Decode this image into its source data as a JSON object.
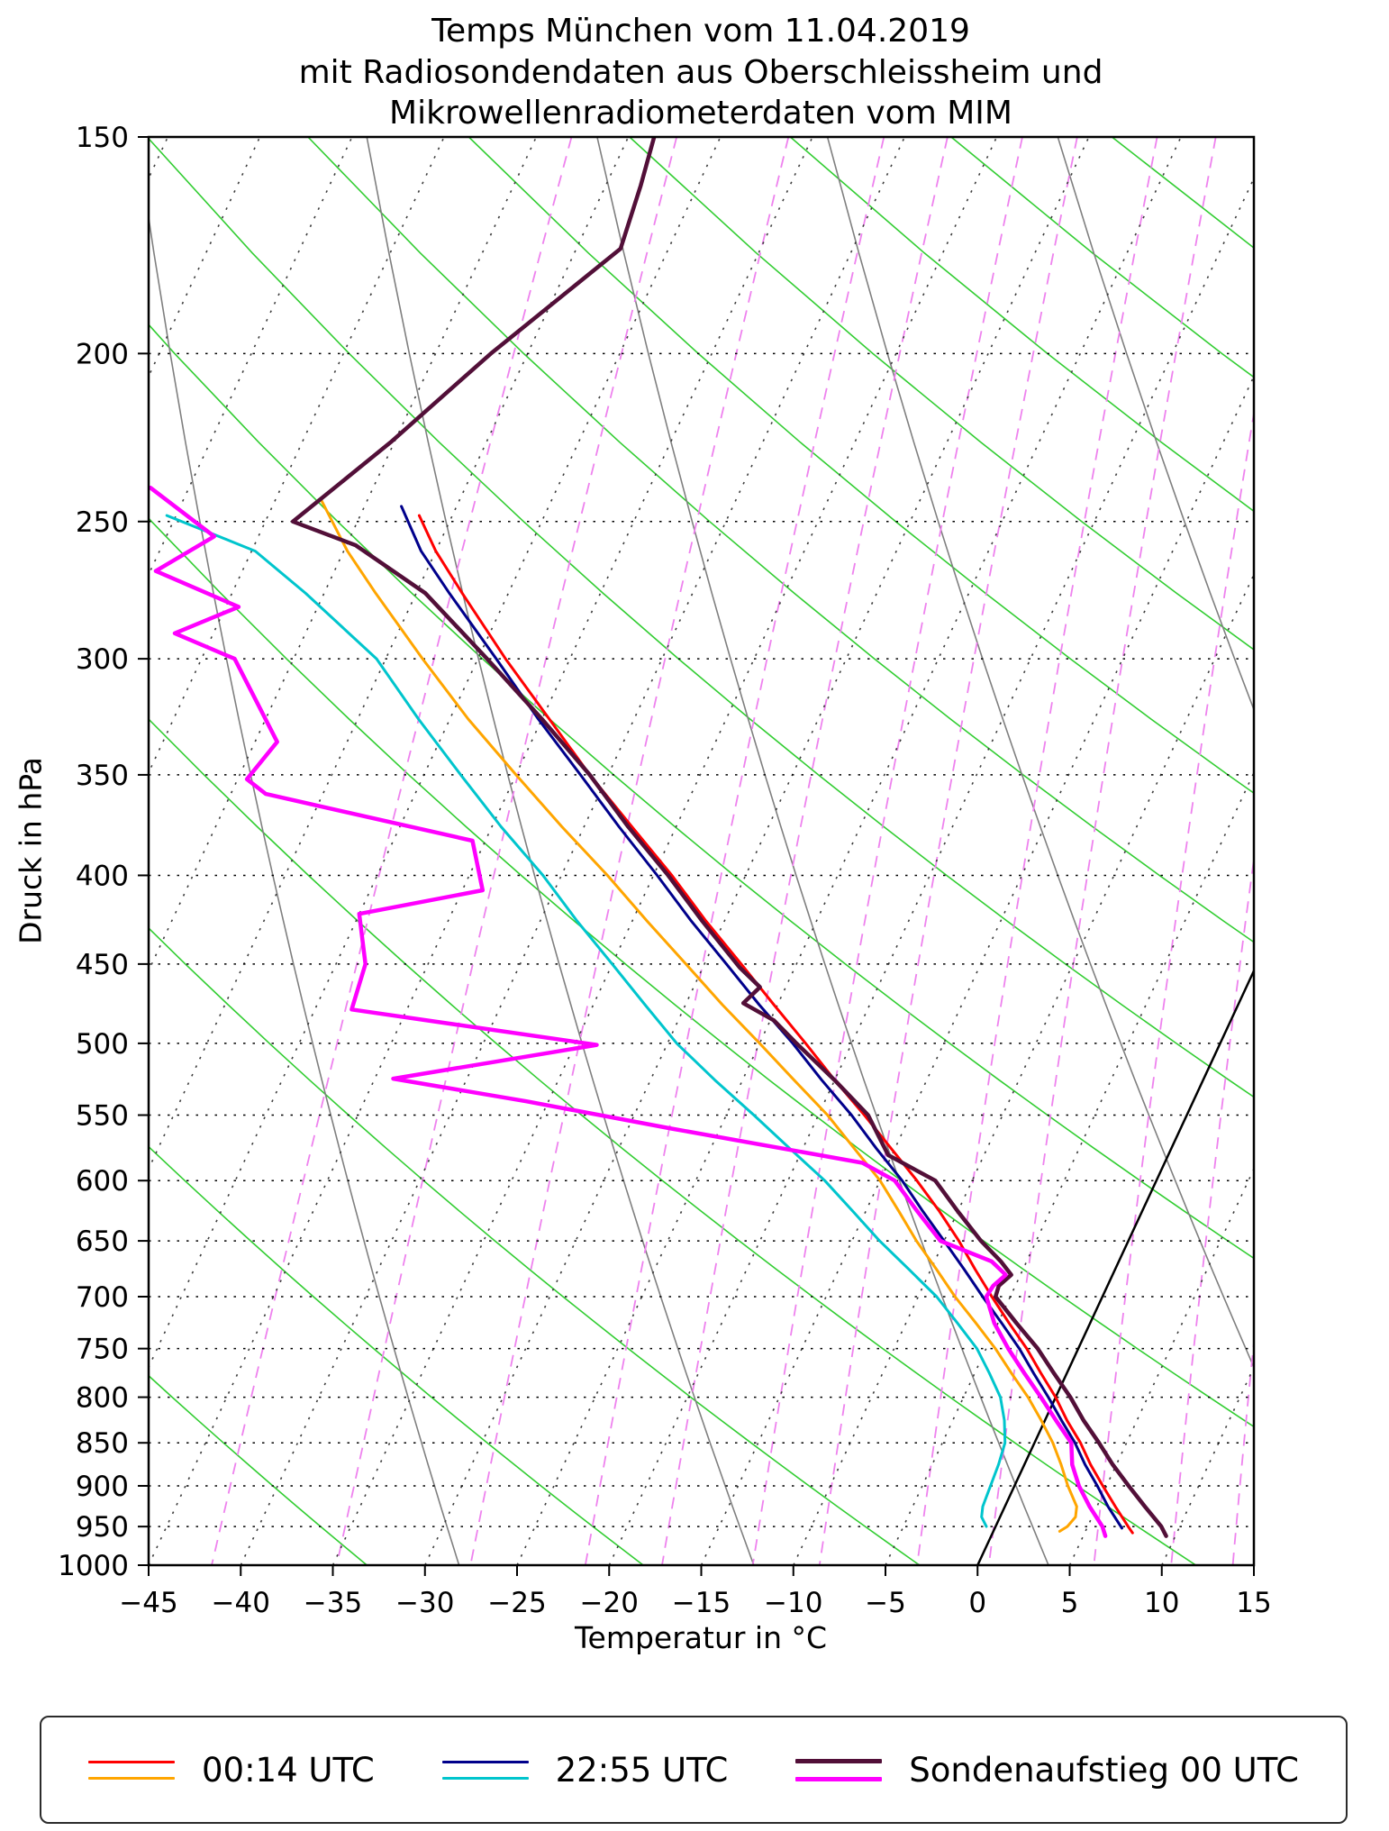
{
  "title": {
    "line1": "Temps München vom 11.04.2019",
    "line2": "mit Radiosondendaten aus Oberschleissheim und",
    "line3": "Mikrowellenradiometerdaten vom MIM"
  },
  "axes": {
    "xlabel": "Temperatur in °C",
    "ylabel": "Druck in hPa",
    "xlim": [
      -45,
      15
    ],
    "ylim": [
      1000,
      150
    ],
    "x_ticks": [
      -45,
      -40,
      -35,
      -30,
      -25,
      -20,
      -15,
      -10,
      -5,
      0,
      5,
      10,
      15
    ],
    "y_ticks": [
      150,
      200,
      250,
      300,
      350,
      400,
      450,
      500,
      550,
      600,
      650,
      700,
      750,
      800,
      850,
      900,
      950,
      1000
    ]
  },
  "legend": {
    "items": [
      {
        "label": "00:14 UTC"
      },
      {
        "label": "22:55 UTC"
      },
      {
        "label": "Sondenaufstieg 00 UTC"
      }
    ]
  },
  "chart_data": {
    "type": "line",
    "diagram": "skew-t-log-p",
    "title": "Temps München vom 11.04.2019 mit Radiosondendaten aus Oberschleissheim und Mikrowellenradiometerdaten vom MIM",
    "xlabel": "Temperatur in °C",
    "ylabel": "Druck in hPa",
    "x_range_c": [
      -45,
      15
    ],
    "y_range_hpa": [
      1000,
      150
    ],
    "y_scale": "log",
    "skew": 0.465,
    "background": {
      "isotherm_step_c": 5,
      "isotherm_color": "#3d3d3d",
      "zero_isotherm_color": "#000000",
      "pressure_grid_color": "#000000",
      "dry_adiabat_color": "#32cd32",
      "dry_adiabats_theta_k": [
        240,
        255,
        270,
        285,
        300,
        315,
        330,
        345,
        360,
        375,
        390,
        405,
        420,
        435
      ],
      "moist_adiabat_color": "#7f7f7f",
      "moist_adiabats_thetaw_k": [
        245,
        261,
        277,
        293,
        309,
        325,
        341
      ],
      "mixing_ratio_color": "#ee82ee",
      "mixing_ratio_g_kg": [
        0.1,
        0.2,
        0.4,
        0.7,
        1,
        1.5,
        2,
        3,
        4,
        6,
        8,
        10,
        14,
        20
      ]
    },
    "series": [
      {
        "id": "temperature-0014utc",
        "legend": "00:14 UTC",
        "kind": "temperature",
        "color": "#ff0000",
        "width": 3,
        "points": [
          [
            958,
            7.6
          ],
          [
            950,
            7.2
          ],
          [
            925,
            6.0
          ],
          [
            900,
            4.8
          ],
          [
            875,
            3.6
          ],
          [
            850,
            2.5
          ],
          [
            825,
            1.2
          ],
          [
            800,
            0.0
          ],
          [
            775,
            -1.4
          ],
          [
            750,
            -2.8
          ],
          [
            725,
            -4.4
          ],
          [
            700,
            -6.0
          ],
          [
            675,
            -7.6
          ],
          [
            650,
            -9.2
          ],
          [
            625,
            -11.0
          ],
          [
            600,
            -13.0
          ],
          [
            575,
            -15.2
          ],
          [
            550,
            -17.5
          ],
          [
            525,
            -20.0
          ],
          [
            500,
            -22.5
          ],
          [
            475,
            -25.2
          ],
          [
            450,
            -28.0
          ],
          [
            425,
            -31.0
          ],
          [
            400,
            -34.0
          ],
          [
            375,
            -37.4
          ],
          [
            350,
            -41.0
          ],
          [
            325,
            -44.6
          ],
          [
            300,
            -48.5
          ],
          [
            275,
            -52.5
          ],
          [
            260,
            -55.0
          ],
          [
            248,
            -56.8
          ]
        ]
      },
      {
        "id": "dewpoint-0014utc",
        "legend": "00:14 UTC",
        "kind": "dewpoint",
        "color": "#ffa500",
        "width": 3,
        "points": [
          [
            956,
            3.6
          ],
          [
            950,
            3.9
          ],
          [
            938,
            4.1
          ],
          [
            925,
            3.9
          ],
          [
            900,
            2.9
          ],
          [
            875,
            2.0
          ],
          [
            850,
            1.0
          ],
          [
            825,
            -0.2
          ],
          [
            800,
            -1.5
          ],
          [
            775,
            -3.0
          ],
          [
            750,
            -4.5
          ],
          [
            725,
            -6.2
          ],
          [
            700,
            -8.0
          ],
          [
            675,
            -9.7
          ],
          [
            650,
            -11.5
          ],
          [
            625,
            -13.2
          ],
          [
            600,
            -15.0
          ],
          [
            575,
            -17.2
          ],
          [
            550,
            -19.5
          ],
          [
            525,
            -22.2
          ],
          [
            500,
            -25.0
          ],
          [
            475,
            -28.0
          ],
          [
            450,
            -31.0
          ],
          [
            425,
            -34.2
          ],
          [
            400,
            -37.5
          ],
          [
            375,
            -41.2
          ],
          [
            350,
            -45.0
          ],
          [
            325,
            -49.0
          ],
          [
            300,
            -53.0
          ],
          [
            275,
            -57.2
          ],
          [
            260,
            -59.8
          ],
          [
            243,
            -62.5
          ]
        ]
      },
      {
        "id": "temperature-2255utc",
        "legend": "22:55 UTC",
        "kind": "temperature",
        "color": "#00008b",
        "width": 3,
        "points": [
          [
            952,
            6.9
          ],
          [
            925,
            5.6
          ],
          [
            900,
            4.5
          ],
          [
            875,
            3.3
          ],
          [
            850,
            2.2
          ],
          [
            825,
            0.9
          ],
          [
            800,
            -0.4
          ],
          [
            775,
            -1.8
          ],
          [
            750,
            -3.2
          ],
          [
            725,
            -4.8
          ],
          [
            700,
            -6.5
          ],
          [
            675,
            -8.2
          ],
          [
            650,
            -10.0
          ],
          [
            625,
            -11.9
          ],
          [
            600,
            -13.8
          ],
          [
            575,
            -16.0
          ],
          [
            550,
            -18.2
          ],
          [
            525,
            -20.7
          ],
          [
            500,
            -23.2
          ],
          [
            475,
            -26.0
          ],
          [
            450,
            -28.8
          ],
          [
            425,
            -31.8
          ],
          [
            400,
            -34.8
          ],
          [
            375,
            -38.1
          ],
          [
            350,
            -41.5
          ],
          [
            325,
            -45.2
          ],
          [
            300,
            -49.0
          ],
          [
            275,
            -53.2
          ],
          [
            260,
            -55.8
          ],
          [
            245,
            -58.0
          ]
        ]
      },
      {
        "id": "dewpoint-2255utc",
        "legend": "22:55 UTC",
        "kind": "dewpoint",
        "color": "#00c5cd",
        "width": 3,
        "points": [
          [
            950,
            -0.5
          ],
          [
            938,
            -1.0
          ],
          [
            925,
            -1.2
          ],
          [
            900,
            -1.3
          ],
          [
            875,
            -1.4
          ],
          [
            850,
            -1.6
          ],
          [
            825,
            -2.2
          ],
          [
            800,
            -3.0
          ],
          [
            775,
            -4.2
          ],
          [
            750,
            -5.5
          ],
          [
            725,
            -7.2
          ],
          [
            700,
            -9.0
          ],
          [
            675,
            -11.2
          ],
          [
            650,
            -13.5
          ],
          [
            625,
            -15.7
          ],
          [
            600,
            -18.0
          ],
          [
            575,
            -20.7
          ],
          [
            550,
            -23.5
          ],
          [
            525,
            -26.5
          ],
          [
            500,
            -29.5
          ],
          [
            475,
            -32.2
          ],
          [
            450,
            -35.0
          ],
          [
            425,
            -38.0
          ],
          [
            400,
            -41.0
          ],
          [
            375,
            -44.5
          ],
          [
            350,
            -48.0
          ],
          [
            325,
            -51.7
          ],
          [
            300,
            -55.5
          ],
          [
            275,
            -61.0
          ],
          [
            260,
            -64.8
          ],
          [
            248,
            -70.5
          ]
        ]
      },
      {
        "id": "temperature-sonde-00utc",
        "legend": "Sondenaufstieg 00 UTC",
        "kind": "temperature",
        "color": "#520f38",
        "width": 4.5,
        "points": [
          [
            962,
            9.5
          ],
          [
            950,
            9.0
          ],
          [
            925,
            7.6
          ],
          [
            900,
            6.2
          ],
          [
            875,
            4.8
          ],
          [
            850,
            3.5
          ],
          [
            825,
            2.1
          ],
          [
            800,
            0.8
          ],
          [
            775,
            -0.7
          ],
          [
            750,
            -2.2
          ],
          [
            725,
            -4.0
          ],
          [
            700,
            -5.8
          ],
          [
            690,
            -5.9
          ],
          [
            680,
            -5.5
          ],
          [
            668,
            -6.4
          ],
          [
            650,
            -8.0
          ],
          [
            625,
            -10.0
          ],
          [
            600,
            -12.0
          ],
          [
            580,
            -15.2
          ],
          [
            550,
            -17.3
          ],
          [
            525,
            -20.0
          ],
          [
            500,
            -23.0
          ],
          [
            485,
            -24.8
          ],
          [
            474,
            -26.9
          ],
          [
            464,
            -26.4
          ],
          [
            452,
            -28.0
          ],
          [
            425,
            -31.2
          ],
          [
            400,
            -34.2
          ],
          [
            375,
            -37.6
          ],
          [
            350,
            -41.0
          ],
          [
            325,
            -45.0
          ],
          [
            300,
            -49.5
          ],
          [
            275,
            -54.5
          ],
          [
            258,
            -59.5
          ],
          [
            250,
            -63.5
          ],
          [
            225,
            -60.2
          ],
          [
            200,
            -57.0
          ],
          [
            174,
            -52.6
          ],
          [
            160,
            -53.1
          ],
          [
            150,
            -53.6
          ]
        ]
      },
      {
        "id": "dewpoint-sonde-00utc",
        "legend": "Sondenaufstieg 00 UTC",
        "kind": "dewpoint",
        "color": "#ff00ff",
        "width": 4.5,
        "points": [
          [
            962,
            6.2
          ],
          [
            950,
            5.8
          ],
          [
            925,
            4.6
          ],
          [
            900,
            3.5
          ],
          [
            875,
            2.6
          ],
          [
            850,
            2.0
          ],
          [
            825,
            0.6
          ],
          [
            800,
            -0.8
          ],
          [
            775,
            -2.3
          ],
          [
            750,
            -3.8
          ],
          [
            725,
            -5.2
          ],
          [
            700,
            -6.3
          ],
          [
            690,
            -6.2
          ],
          [
            680,
            -5.8
          ],
          [
            668,
            -6.9
          ],
          [
            650,
            -10.2
          ],
          [
            625,
            -12.2
          ],
          [
            600,
            -14.2
          ],
          [
            586,
            -16.4
          ],
          [
            560,
            -27.6
          ],
          [
            540,
            -36.2
          ],
          [
            524,
            -44.0
          ],
          [
            501,
            -33.8
          ],
          [
            478,
            -48.0
          ],
          [
            450,
            -48.4
          ],
          [
            421,
            -50.0
          ],
          [
            408,
            -43.9
          ],
          [
            382,
            -45.7
          ],
          [
            359,
            -58.1
          ],
          [
            352,
            -59.5
          ],
          [
            335,
            -58.8
          ],
          [
            300,
            -63.2
          ],
          [
            290,
            -67.1
          ],
          [
            280,
            -64.3
          ],
          [
            267,
            -69.7
          ],
          [
            255,
            -67.4
          ],
          [
            239,
            -72.1
          ]
        ]
      }
    ]
  }
}
